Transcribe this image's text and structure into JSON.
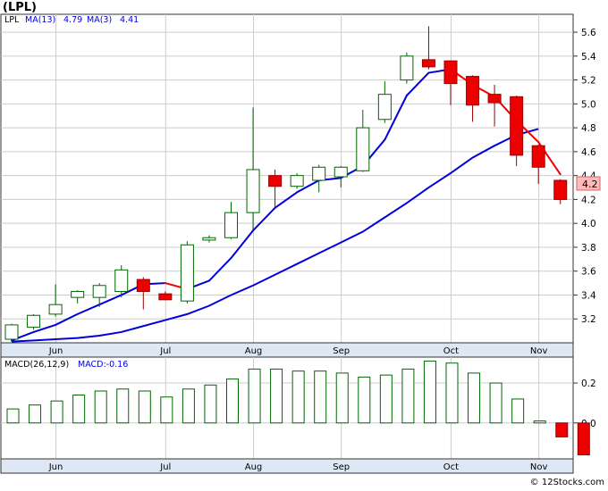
{
  "chart_data": [
    {
      "type": "candlestick",
      "title": "(LPL)",
      "legend": {
        "symbol": "LPL",
        "ma13_label": "MA(13)",
        "ma13_value": "4.79",
        "ma3_label": "MA(3)",
        "ma3_value": "4.41"
      },
      "last_price_label": "4.2",
      "ylim": [
        3.0,
        5.75
      ],
      "yticks": [
        3.2,
        3.4,
        3.6,
        3.8,
        4.0,
        4.2,
        4.4,
        4.6,
        4.8,
        5.0,
        5.2,
        5.4,
        5.6
      ],
      "ytick_labels": [
        "3.2",
        "3.4",
        "3.6",
        "3.8",
        "4.0",
        "4.2",
        "4.4",
        "4.6",
        "4.8",
        "5.0",
        "5.2",
        "5.4",
        "5.6"
      ],
      "month_labels": [
        "Jun",
        "Jul",
        "Aug",
        "Sep",
        "Oct",
        "Nov"
      ],
      "month_week_index": [
        1,
        6,
        10,
        14,
        19,
        23
      ],
      "candles": [
        {
          "o": 3.03,
          "h": 3.16,
          "l": 3.01,
          "c": 3.15
        },
        {
          "o": 3.13,
          "h": 3.24,
          "l": 3.11,
          "c": 3.23
        },
        {
          "o": 3.24,
          "h": 3.49,
          "l": 3.22,
          "c": 3.32
        },
        {
          "o": 3.38,
          "h": 3.44,
          "l": 3.33,
          "c": 3.43
        },
        {
          "o": 3.38,
          "h": 3.5,
          "l": 3.3,
          "c": 3.48
        },
        {
          "o": 3.43,
          "h": 3.65,
          "l": 3.38,
          "c": 3.61
        },
        {
          "o": 3.53,
          "h": 3.55,
          "l": 3.28,
          "c": 3.43
        },
        {
          "o": 3.41,
          "h": 3.43,
          "l": 3.36,
          "c": 3.36
        },
        {
          "o": 3.35,
          "h": 3.85,
          "l": 3.33,
          "c": 3.82
        },
        {
          "o": 3.86,
          "h": 3.9,
          "l": 3.84,
          "c": 3.88
        },
        {
          "o": 3.88,
          "h": 4.18,
          "l": 3.87,
          "c": 4.09
        },
        {
          "o": 4.09,
          "h": 4.97,
          "l": 3.95,
          "c": 4.45
        },
        {
          "o": 4.4,
          "h": 4.45,
          "l": 4.13,
          "c": 4.31
        },
        {
          "o": 4.31,
          "h": 4.42,
          "l": 4.29,
          "c": 4.4
        },
        {
          "o": 4.36,
          "h": 4.49,
          "l": 4.26,
          "c": 4.47
        },
        {
          "o": 4.39,
          "h": 4.48,
          "l": 4.3,
          "c": 4.47
        },
        {
          "o": 4.44,
          "h": 4.95,
          "l": 4.43,
          "c": 4.8
        },
        {
          "o": 4.87,
          "h": 5.19,
          "l": 4.84,
          "c": 5.08
        },
        {
          "o": 5.2,
          "h": 5.43,
          "l": 5.17,
          "c": 5.4
        },
        {
          "o": 5.37,
          "h": 5.65,
          "l": 5.29,
          "c": 5.31
        },
        {
          "o": 5.36,
          "h": 5.36,
          "l": 4.99,
          "c": 5.17
        },
        {
          "o": 5.23,
          "h": 5.24,
          "l": 4.85,
          "c": 4.99
        },
        {
          "o": 5.08,
          "h": 5.16,
          "l": 4.81,
          "c": 5.01
        },
        {
          "o": 5.06,
          "h": 5.07,
          "l": 4.48,
          "c": 4.57
        },
        {
          "o": 4.65,
          "h": 4.66,
          "l": 4.33,
          "c": 4.47
        },
        {
          "o": 4.36,
          "h": 4.37,
          "l": 4.16,
          "c": 4.2
        }
      ],
      "ma13": [
        3.01,
        3.02,
        3.03,
        3.04,
        3.06,
        3.09,
        3.14,
        3.19,
        3.24,
        3.31,
        3.4,
        3.48,
        3.57,
        3.66,
        3.75,
        3.84,
        3.93,
        4.05,
        4.17,
        4.3,
        4.42,
        4.55,
        4.65,
        4.74,
        4.79
      ],
      "ma3": [
        3.02,
        3.09,
        3.15,
        3.24,
        3.32,
        3.4,
        3.49,
        3.5,
        3.45,
        3.52,
        3.71,
        3.94,
        4.13,
        4.26,
        4.36,
        4.38,
        4.48,
        4.7,
        5.07,
        5.26,
        5.29,
        5.16,
        5.06,
        4.86,
        4.68,
        4.41
      ],
      "ma13_line_color": "#0000dd",
      "ma3_up_color": "#0000dd",
      "ma3_down_color": "#ee0000"
    },
    {
      "type": "bar",
      "title": "MACD(26,12,9)",
      "subtitle": "MACD:-0.16",
      "ylim": [
        -0.18,
        0.33
      ],
      "yticks": [
        0.0,
        0.2
      ],
      "ytick_labels": [
        "0.0",
        "0.2"
      ],
      "month_labels": [
        "Jun",
        "Jul",
        "Aug",
        "Sep",
        "Oct",
        "Nov"
      ],
      "values": [
        0.07,
        0.09,
        0.11,
        0.14,
        0.16,
        0.17,
        0.16,
        0.13,
        0.17,
        0.19,
        0.22,
        0.27,
        0.27,
        0.26,
        0.26,
        0.25,
        0.23,
        0.24,
        0.27,
        0.31,
        0.3,
        0.25,
        0.2,
        0.12,
        0.01,
        -0.07,
        -0.16
      ]
    }
  ],
  "colors": {
    "up_candle_fill": "#ffffff",
    "candle_outline_up": "#006600",
    "down_candle_fill": "#ee0000",
    "candle_outline_down": "#990000",
    "macd_bar_positive": "#006600",
    "macd_bar_negative": "#ee0000",
    "grid": "#cccccc",
    "axis_band": "#dde8f4",
    "price_tag_fill": "#ffbbbb"
  },
  "watermark": "© 12Stocks.com"
}
